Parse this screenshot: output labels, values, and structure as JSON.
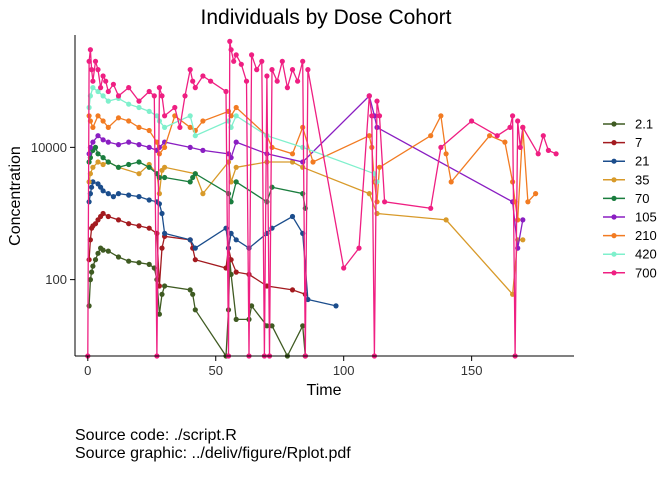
{
  "chart_data": {
    "type": "line",
    "title": "Individuals by Dose Cohort",
    "xlabel": "Time",
    "ylabel": "Concentration",
    "x_ticks": [
      0,
      50,
      100,
      150
    ],
    "x_tick_labels": [
      "0",
      "50",
      "100",
      "150"
    ],
    "y_scale": "log",
    "y_ticks": [
      100,
      10000
    ],
    "y_tick_labels": [
      "100",
      "10000"
    ],
    "xlim": [
      -5,
      190
    ],
    "ylim": [
      7,
      500000
    ],
    "grid": false,
    "legend_position": "right",
    "series": [
      {
        "name": "2.1",
        "color": "#3f5b22",
        "x": [
          0.5,
          1,
          1.5,
          2,
          3,
          4,
          5,
          6,
          8,
          12,
          16,
          20,
          24,
          26,
          27,
          28,
          29,
          30,
          40,
          41,
          42,
          54,
          55,
          55.5,
          56,
          58,
          63,
          64,
          70,
          72,
          78,
          84,
          85
        ],
        "y": [
          40,
          100,
          130,
          160,
          200,
          250,
          300,
          280,
          270,
          220,
          190,
          180,
          170,
          150,
          100,
          30,
          60,
          80,
          70,
          60,
          35,
          7,
          35,
          200,
          120,
          25,
          25,
          40,
          20,
          20,
          7,
          20,
          7
        ]
      },
      {
        "name": "7",
        "color": "#a31a1f",
        "x": [
          0.5,
          1,
          1.5,
          2,
          3,
          4,
          5,
          6,
          8,
          12,
          16,
          20,
          24,
          27,
          28,
          29,
          30,
          40,
          41,
          42,
          54,
          55,
          56,
          58,
          63,
          70,
          80,
          85
        ],
        "y": [
          200,
          400,
          600,
          650,
          700,
          800,
          900,
          1000,
          900,
          800,
          700,
          650,
          600,
          500,
          80,
          300,
          450,
          400,
          300,
          200,
          150,
          300,
          200,
          130,
          120,
          80,
          70,
          60
        ]
      },
      {
        "name": "21",
        "color": "#1b4d8c",
        "x": [
          0.5,
          1,
          1.5,
          2,
          4,
          5,
          6,
          8,
          10,
          12,
          16,
          20,
          24,
          27,
          28,
          29,
          30,
          40,
          42,
          54,
          55,
          56,
          58,
          63,
          70,
          72,
          80,
          84,
          86,
          97
        ],
        "y": [
          1500,
          2000,
          2500,
          3000,
          2800,
          2500,
          2200,
          2000,
          1800,
          2000,
          1900,
          1800,
          1600,
          1500,
          1400,
          1000,
          500,
          400,
          300,
          600,
          300,
          500,
          400,
          300,
          500,
          600,
          900,
          500,
          50,
          40
        ]
      },
      {
        "name": "35",
        "color": "#d89a2a",
        "x": [
          0.5,
          1,
          2,
          4,
          6,
          8,
          12,
          20,
          24,
          27,
          28,
          29,
          30,
          42,
          45,
          55,
          56,
          58,
          70,
          80,
          84,
          110,
          113,
          140,
          166,
          168,
          170
        ],
        "y": [
          3000,
          4000,
          5000,
          6000,
          5500,
          6000,
          5000,
          4000,
          5500,
          4000,
          2000,
          4500,
          5000,
          4000,
          2000,
          6000,
          3000,
          5000,
          6000,
          6000,
          5000,
          2000,
          1000,
          800,
          60,
          400,
          400
        ]
      },
      {
        "name": "70",
        "color": "#1a7d3e",
        "x": [
          0.5,
          1,
          2,
          3,
          4,
          6,
          8,
          12,
          16,
          20,
          24,
          27,
          28,
          30,
          40,
          41,
          42,
          55,
          56,
          58,
          70,
          72,
          84,
          85
        ],
        "y": [
          6000,
          7000,
          9000,
          10000,
          8000,
          7000,
          6000,
          5000,
          5500,
          6000,
          5000,
          4000,
          3500,
          3500,
          3000,
          3500,
          4000,
          2000,
          1500,
          3000,
          1500,
          2500,
          2000,
          1200
        ]
      },
      {
        "name": "105",
        "color": "#8a1ec2",
        "x": [
          0.5,
          1,
          2,
          4,
          6,
          8,
          12,
          16,
          20,
          24,
          27,
          28,
          30,
          40,
          45,
          55,
          56,
          58,
          70,
          84,
          110,
          112,
          113,
          166,
          168,
          170
        ],
        "y": [
          8000,
          10000,
          12000,
          15000,
          13000,
          12000,
          11000,
          12000,
          11000,
          10000,
          9000,
          10000,
          12000,
          10000,
          9000,
          8000,
          7000,
          12000,
          8000,
          6000,
          60000,
          30000,
          20000,
          1500,
          300,
          800
        ]
      },
      {
        "name": "210",
        "color": "#f27b22",
        "x": [
          0.5,
          1,
          2,
          4,
          6,
          8,
          12,
          16,
          20,
          24,
          27,
          28,
          30,
          34,
          40,
          42,
          45,
          55,
          56,
          58,
          70,
          72,
          80,
          84,
          88,
          110,
          111,
          112,
          113,
          114,
          134,
          138,
          140,
          142,
          157,
          163,
          166,
          167,
          168,
          170,
          172,
          175
        ],
        "y": [
          30000,
          25000,
          20000,
          30000,
          25000,
          20000,
          28000,
          25000,
          20000,
          18000,
          12000,
          8000,
          10000,
          30000,
          20000,
          18000,
          25000,
          35000,
          30000,
          40000,
          15000,
          10000,
          8000,
          20000,
          6000,
          15000,
          10000,
          3000,
          1500,
          5000,
          15000,
          30000,
          8000,
          3000,
          15000,
          12000,
          3000,
          1500,
          800,
          20000,
          1500,
          2000
        ]
      },
      {
        "name": "420",
        "color": "#7ff0cc",
        "x": [
          0.5,
          1,
          2,
          4,
          6,
          8,
          12,
          16,
          20,
          24,
          27,
          28,
          30,
          40,
          42,
          55,
          56,
          58,
          70,
          84,
          112,
          113
        ],
        "y": [
          40000,
          60000,
          80000,
          70000,
          60000,
          50000,
          55000,
          45000,
          40000,
          35000,
          30000,
          25000,
          20000,
          30000,
          15000,
          25000,
          20000,
          30000,
          15000,
          10000,
          4000,
          3000
        ]
      },
      {
        "name": "700",
        "color": "#ef1f82",
        "x": [
          0,
          0.5,
          1,
          1.5,
          2,
          3,
          4,
          5,
          6,
          7,
          8,
          10,
          12,
          16,
          20,
          24,
          26,
          27,
          28,
          29,
          30,
          34,
          36,
          38,
          40,
          41,
          42,
          45,
          48,
          54,
          55,
          55.5,
          56,
          57,
          58,
          60,
          62,
          63,
          64,
          66,
          68,
          69,
          70,
          71,
          72,
          74,
          76,
          78,
          80,
          82,
          84,
          85,
          86,
          100,
          106,
          110,
          111,
          112,
          113,
          114,
          116,
          134,
          138,
          150,
          160,
          165,
          166,
          167,
          168,
          169,
          170,
          176,
          178,
          180,
          183
        ],
        "y": [
          7,
          200000,
          300000,
          150000,
          100000,
          200000,
          150000,
          80000,
          120000,
          100000,
          70000,
          90000,
          60000,
          80000,
          50000,
          70000,
          60000,
          7,
          80000,
          60000,
          30000,
          40000,
          20000,
          60000,
          150000,
          100000,
          80000,
          120000,
          100000,
          70000,
          7,
          400000,
          300000,
          200000,
          250000,
          180000,
          100000,
          7,
          250000,
          150000,
          200000,
          7,
          120000,
          7,
          150000,
          100000,
          200000,
          80000,
          150000,
          100000,
          200000,
          7,
          150000,
          150,
          300,
          60000,
          30000,
          7,
          50000,
          30000,
          1500,
          1200,
          10000,
          25000,
          15000,
          20000,
          30000,
          7,
          25000,
          10000,
          20000,
          8000,
          15000,
          9000,
          8000
        ]
      }
    ]
  },
  "captions": [
    "Source code: ./script.R",
    "Source graphic: ../deliv/figure/Rplot.pdf"
  ]
}
